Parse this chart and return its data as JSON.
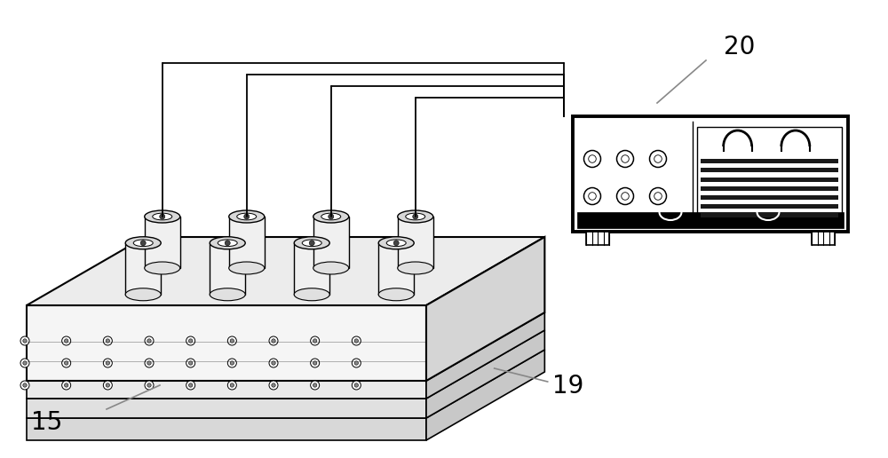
{
  "bg_color": "#ffffff",
  "line_color": "#000000",
  "gray_light": "#e8e8e8",
  "gray_mid": "#d0d0d0",
  "gray_dark": "#b0b0b0",
  "label_15": "15",
  "label_19": "19",
  "label_20": "20",
  "label_fontsize": 20,
  "fig_width": 10.0,
  "fig_height": 5.16
}
